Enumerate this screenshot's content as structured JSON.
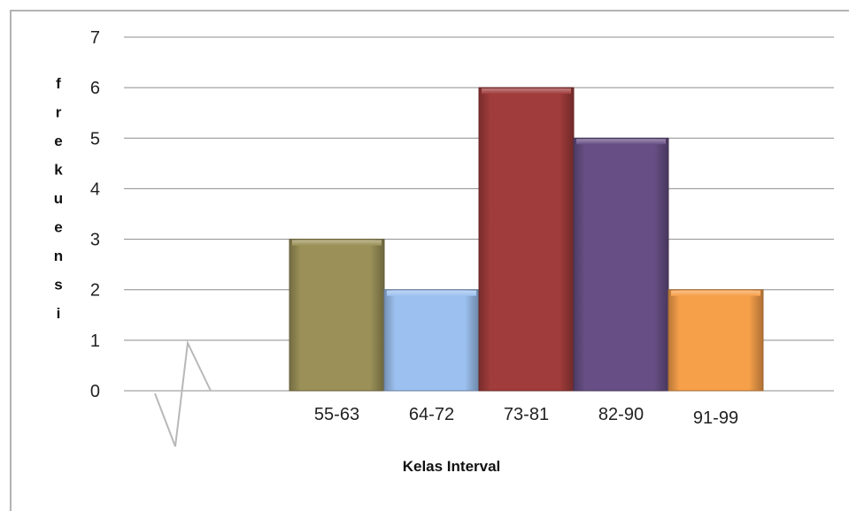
{
  "chart_data": {
    "type": "bar",
    "title": "",
    "xlabel": "Kelas Interval",
    "ylabel": "frekuensi",
    "categories": [
      "55-63",
      "64-72",
      "73-81",
      "82-90",
      "91-99"
    ],
    "values": [
      3,
      2,
      6,
      5,
      2
    ],
    "ylim": [
      0,
      7
    ],
    "yticks": [
      "0",
      "1",
      "2",
      "3",
      "4",
      "5",
      "6",
      "7"
    ],
    "grid": true,
    "legend": "none",
    "axis_break": true,
    "colors": [
      "#9b9158",
      "#9cc1f0",
      "#a03c3b",
      "#674f85",
      "#f7a04a"
    ]
  }
}
